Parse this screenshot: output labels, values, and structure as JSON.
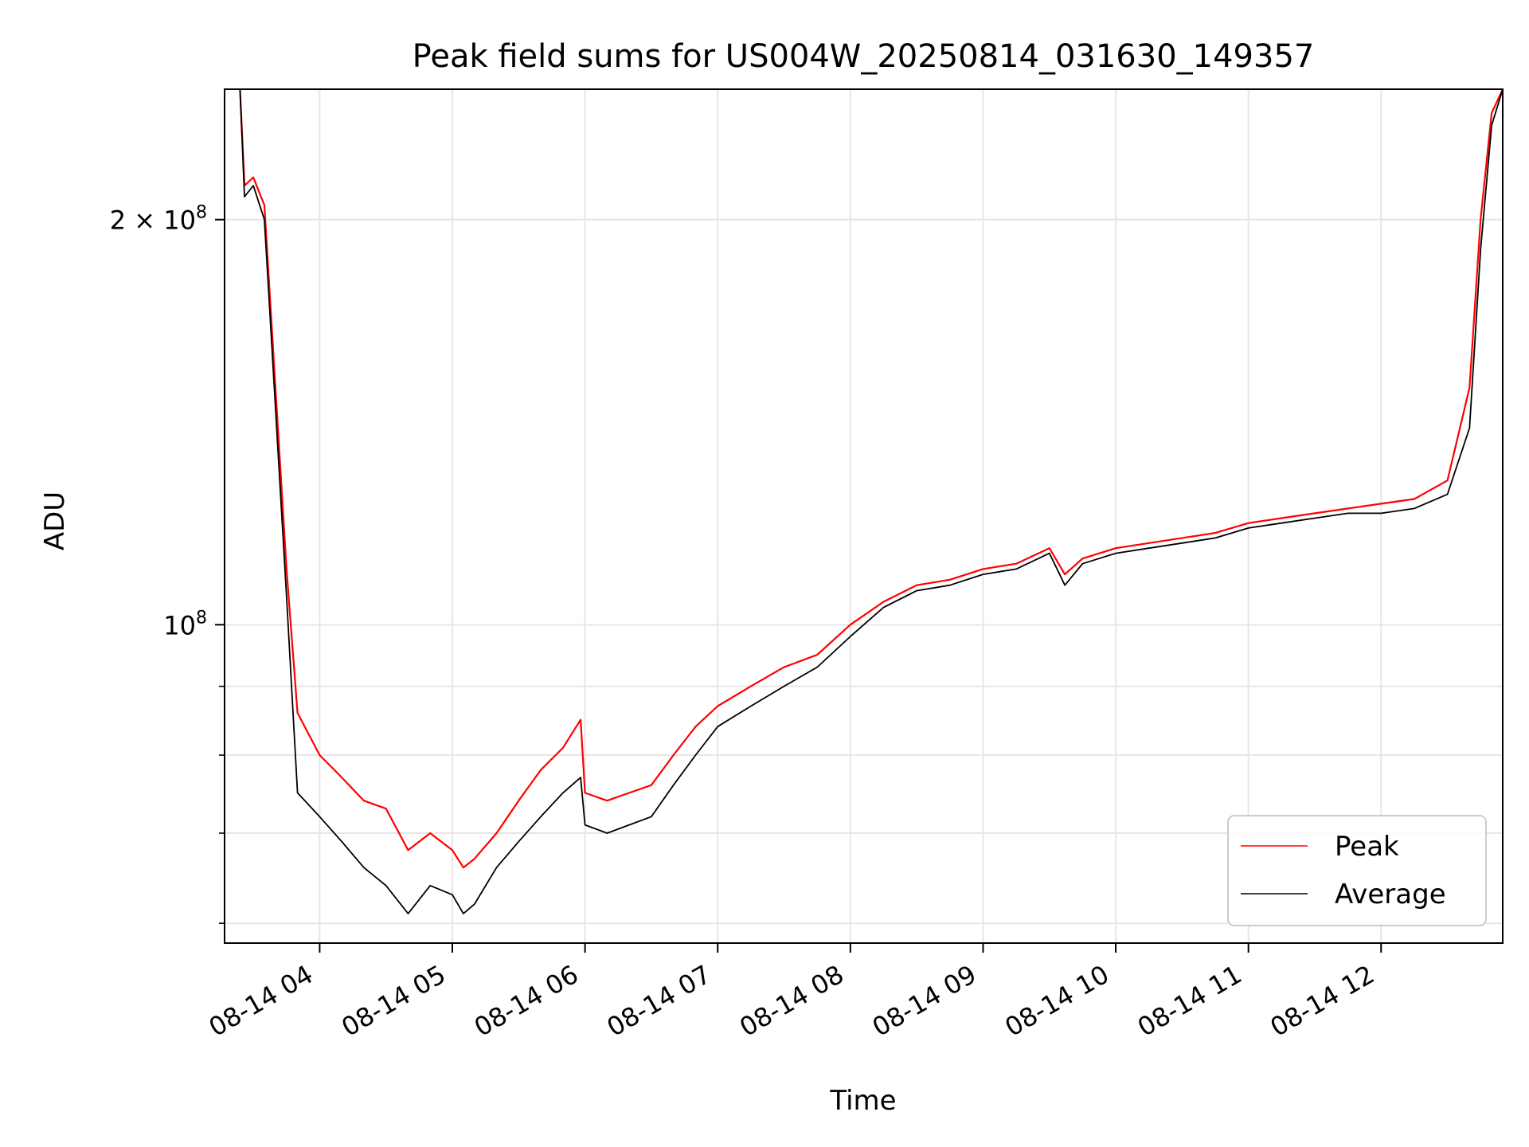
{
  "chart_data": {
    "type": "line",
    "title": "Peak field sums for US004W_20250814_031630_149357",
    "xlabel": "Time",
    "ylabel": "ADU",
    "yscale": "log",
    "grid": true,
    "legend_position": "lower-right",
    "xlim": [
      "2025-08-14 03:17",
      "2025-08-14 12:55"
    ],
    "ylim": [
      58000000,
      250000000
    ],
    "x_ticks": [
      "08-14 04",
      "08-14 05",
      "08-14 06",
      "08-14 07",
      "08-14 08",
      "08-14 09",
      "08-14 10",
      "08-14 11",
      "08-14 12"
    ],
    "x_tick_times": [
      "2025-08-14 04:00",
      "2025-08-14 05:00",
      "2025-08-14 06:00",
      "2025-08-14 07:00",
      "2025-08-14 08:00",
      "2025-08-14 09:00",
      "2025-08-14 10:00",
      "2025-08-14 11:00",
      "2025-08-14 12:00"
    ],
    "y_major_ticks": [
      {
        "value": 100000000,
        "base": "10",
        "exp": "8"
      },
      {
        "value": 200000000,
        "base": "2 × 10",
        "exp": "8"
      }
    ],
    "y_minor_ticks": [
      60000000,
      70000000,
      80000000,
      90000000
    ],
    "series": [
      {
        "name": "Peak",
        "color": "#ff0000",
        "x": [
          "2025-08-14 03:24",
          "2025-08-14 03:26",
          "2025-08-14 03:30",
          "2025-08-14 03:35",
          "2025-08-14 03:40",
          "2025-08-14 03:45",
          "2025-08-14 03:50",
          "2025-08-14 04:00",
          "2025-08-14 04:10",
          "2025-08-14 04:20",
          "2025-08-14 04:30",
          "2025-08-14 04:40",
          "2025-08-14 04:50",
          "2025-08-14 05:00",
          "2025-08-14 05:05",
          "2025-08-14 05:10",
          "2025-08-14 05:20",
          "2025-08-14 05:30",
          "2025-08-14 05:40",
          "2025-08-14 05:50",
          "2025-08-14 05:58",
          "2025-08-14 06:00",
          "2025-08-14 06:10",
          "2025-08-14 06:20",
          "2025-08-14 06:30",
          "2025-08-14 06:40",
          "2025-08-14 06:50",
          "2025-08-14 07:00",
          "2025-08-14 07:15",
          "2025-08-14 07:30",
          "2025-08-14 07:45",
          "2025-08-14 08:00",
          "2025-08-14 08:15",
          "2025-08-14 08:30",
          "2025-08-14 08:45",
          "2025-08-14 09:00",
          "2025-08-14 09:15",
          "2025-08-14 09:30",
          "2025-08-14 09:37",
          "2025-08-14 09:45",
          "2025-08-14 10:00",
          "2025-08-14 10:15",
          "2025-08-14 10:30",
          "2025-08-14 10:45",
          "2025-08-14 11:00",
          "2025-08-14 11:15",
          "2025-08-14 11:30",
          "2025-08-14 11:45",
          "2025-08-14 12:00",
          "2025-08-14 12:15",
          "2025-08-14 12:30",
          "2025-08-14 12:40",
          "2025-08-14 12:45",
          "2025-08-14 12:50",
          "2025-08-14 12:55"
        ],
        "y": [
          250000000,
          212000000,
          215000000,
          205000000,
          150000000,
          110000000,
          86000000,
          80000000,
          77000000,
          74000000,
          73000000,
          68000000,
          70000000,
          68000000,
          66000000,
          67000000,
          70000000,
          74000000,
          78000000,
          81000000,
          85000000,
          75000000,
          74000000,
          75000000,
          76000000,
          80000000,
          84000000,
          87000000,
          90000000,
          93000000,
          95000000,
          100000000,
          104000000,
          107000000,
          108000000,
          110000000,
          111000000,
          114000000,
          109000000,
          112000000,
          114000000,
          115000000,
          116000000,
          117000000,
          119000000,
          120000000,
          121000000,
          122000000,
          123000000,
          124000000,
          128000000,
          150000000,
          200000000,
          240000000,
          250000000
        ]
      },
      {
        "name": "Average",
        "color": "#000000",
        "x": [
          "2025-08-14 03:24",
          "2025-08-14 03:26",
          "2025-08-14 03:30",
          "2025-08-14 03:35",
          "2025-08-14 03:40",
          "2025-08-14 03:45",
          "2025-08-14 03:50",
          "2025-08-14 04:00",
          "2025-08-14 04:10",
          "2025-08-14 04:20",
          "2025-08-14 04:30",
          "2025-08-14 04:40",
          "2025-08-14 04:50",
          "2025-08-14 05:00",
          "2025-08-14 05:05",
          "2025-08-14 05:10",
          "2025-08-14 05:20",
          "2025-08-14 05:30",
          "2025-08-14 05:40",
          "2025-08-14 05:50",
          "2025-08-14 05:58",
          "2025-08-14 06:00",
          "2025-08-14 06:10",
          "2025-08-14 06:20",
          "2025-08-14 06:30",
          "2025-08-14 06:40",
          "2025-08-14 06:50",
          "2025-08-14 07:00",
          "2025-08-14 07:15",
          "2025-08-14 07:30",
          "2025-08-14 07:45",
          "2025-08-14 08:00",
          "2025-08-14 08:15",
          "2025-08-14 08:30",
          "2025-08-14 08:45",
          "2025-08-14 09:00",
          "2025-08-14 09:15",
          "2025-08-14 09:30",
          "2025-08-14 09:37",
          "2025-08-14 09:45",
          "2025-08-14 10:00",
          "2025-08-14 10:15",
          "2025-08-14 10:30",
          "2025-08-14 10:45",
          "2025-08-14 11:00",
          "2025-08-14 11:15",
          "2025-08-14 11:30",
          "2025-08-14 11:45",
          "2025-08-14 12:00",
          "2025-08-14 12:15",
          "2025-08-14 12:30",
          "2025-08-14 12:40",
          "2025-08-14 12:45",
          "2025-08-14 12:50",
          "2025-08-14 12:55"
        ],
        "y": [
          250000000,
          208000000,
          212000000,
          200000000,
          145000000,
          105000000,
          75000000,
          72000000,
          69000000,
          66000000,
          64000000,
          61000000,
          64000000,
          63000000,
          61000000,
          62000000,
          66000000,
          69000000,
          72000000,
          75000000,
          77000000,
          71000000,
          70000000,
          71000000,
          72000000,
          76000000,
          80000000,
          84000000,
          87000000,
          90000000,
          93000000,
          98000000,
          103000000,
          106000000,
          107000000,
          109000000,
          110000000,
          113000000,
          107000000,
          111000000,
          113000000,
          114000000,
          115000000,
          116000000,
          118000000,
          119000000,
          120000000,
          121000000,
          121000000,
          122000000,
          125000000,
          140000000,
          190000000,
          235000000,
          250000000
        ]
      }
    ]
  }
}
